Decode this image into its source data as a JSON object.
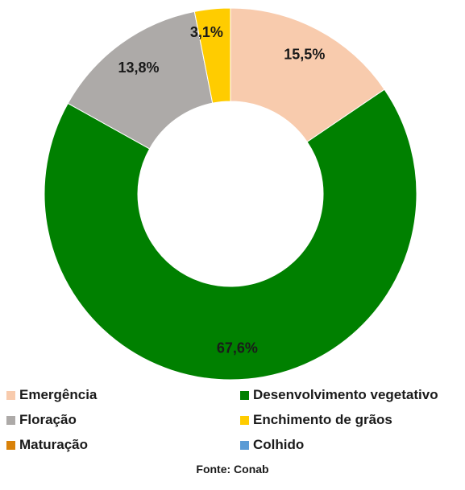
{
  "chart_data": {
    "type": "pie",
    "variant": "donut",
    "categories": [
      "Emergência",
      "Desenvolvimento vegetativo",
      "Floração",
      "Enchimento de grãos",
      "Maturação",
      "Colhido"
    ],
    "values": [
      15.5,
      67.6,
      13.8,
      3.1,
      0,
      0
    ],
    "value_labels": [
      "15,5%",
      "67,6%",
      "13,8%",
      "3,1%",
      "",
      ""
    ],
    "colors": [
      "#F8CBAD",
      "#008000",
      "#ADAAA8",
      "#FFCC00",
      "#D9820A",
      "#5B9BD5"
    ],
    "legend_position": "bottom"
  },
  "source": "Fonte: Conab"
}
